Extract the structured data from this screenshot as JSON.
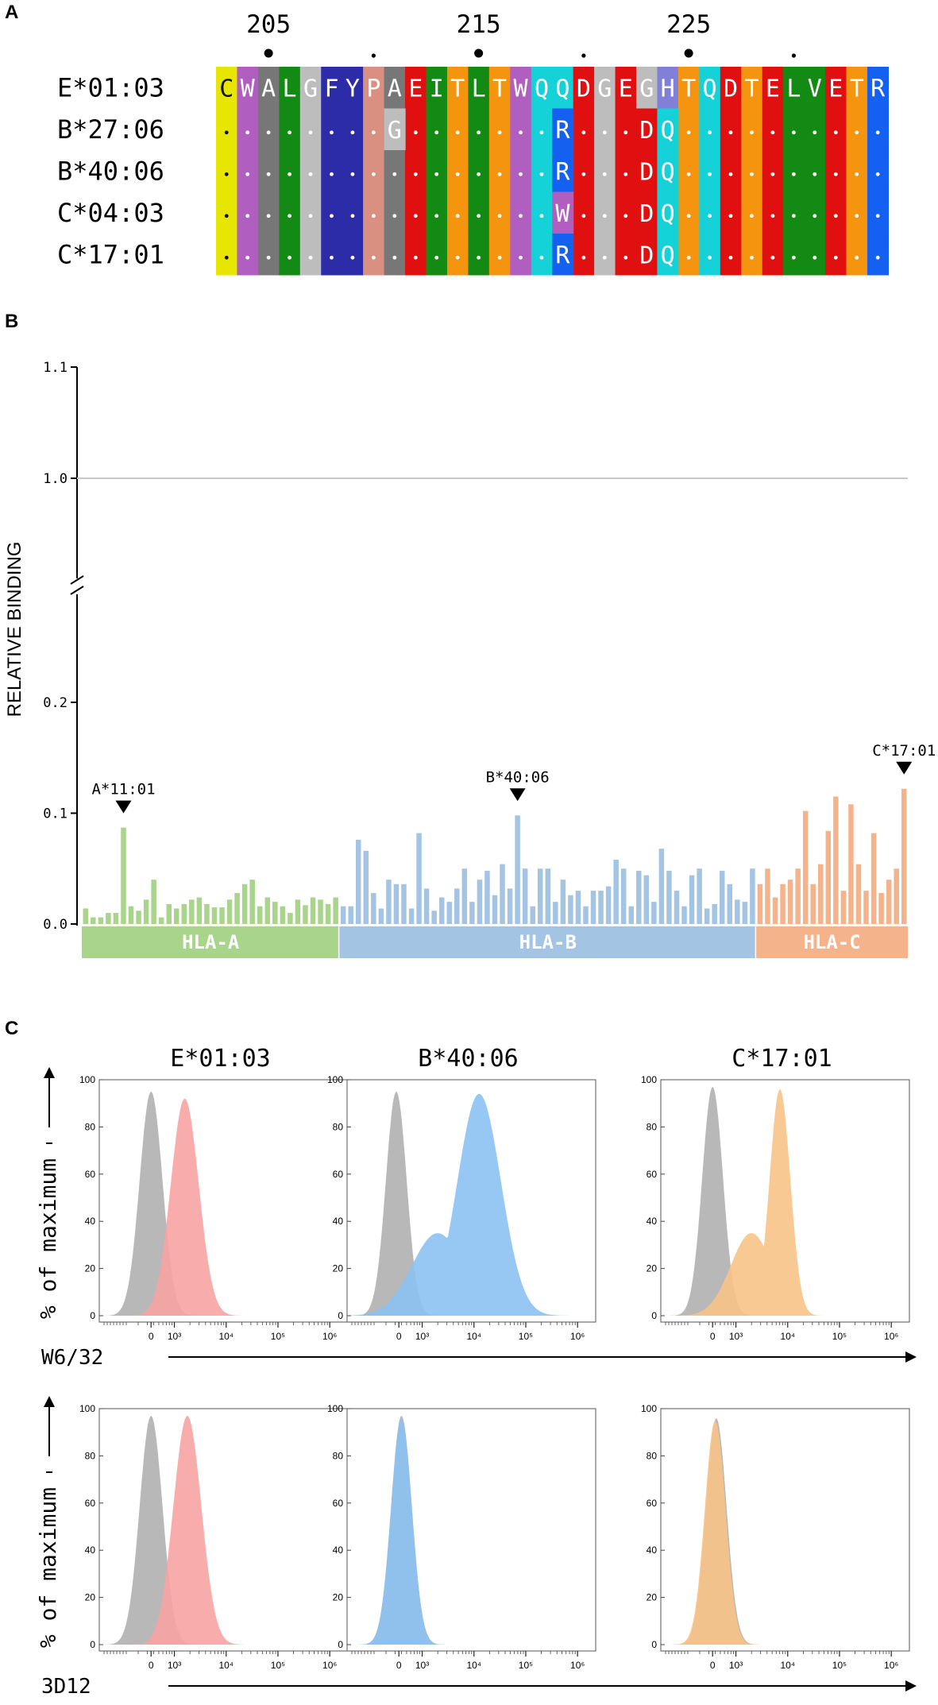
{
  "panels": {
    "a": "A",
    "b": "B",
    "c": "C"
  },
  "alignment": {
    "position_labels": [
      {
        "text": "205",
        "residue_index": 2
      },
      {
        "text": "215",
        "residue_index": 12
      },
      {
        "text": "225",
        "residue_index": 22
      }
    ],
    "major_marker_indices": [
      2,
      12,
      22
    ],
    "minor_marker_indices": [
      7,
      17,
      27
    ],
    "reference": {
      "name": "E*01:03",
      "sequence": "CWALGFYPAEITLTWQQDGEGHTQDTELVETR"
    },
    "rows": [
      {
        "name": "B*27:06",
        "diffs": {
          "8": "G",
          "16": "R",
          "20": "D",
          "21": "Q"
        }
      },
      {
        "name": "B*40:06",
        "diffs": {
          "16": "R",
          "20": "D",
          "21": "Q"
        }
      },
      {
        "name": "C*04:03",
        "diffs": {
          "16": "W",
          "20": "D",
          "21": "Q"
        }
      },
      {
        "name": "C*17:01",
        "diffs": {
          "16": "R",
          "20": "D",
          "21": "Q"
        }
      }
    ],
    "residue_colors": {
      "C": "#e6e600",
      "W": "#b05fc0",
      "A": "#777777",
      "L": "#138a13",
      "G": "#bdbdbd",
      "F": "#2c2ca8",
      "Y": "#2c2ca8",
      "P": "#d99080",
      "E": "#e01010",
      "I": "#138a13",
      "T": "#f5950f",
      "Q": "#14d2d8",
      "D": "#e01010",
      "H": "#8080d8",
      "V": "#138a13",
      "R": "#1460f0"
    }
  },
  "chart_data": [
    {
      "type": "bar",
      "id": "relative-binding",
      "ylabel": "RELATIVE BINDING",
      "yticks": [
        "0.0",
        "0.1",
        "0.2",
        "1.0",
        "1.1"
      ],
      "axis_break": [
        0.3,
        0.95
      ],
      "reference_line": 1.0,
      "groups": [
        {
          "name": "HLA-A",
          "color": "#a8d48c",
          "values": [
            0.014,
            0.006,
            0.006,
            0.01,
            0.01,
            0.087,
            0.016,
            0.012,
            0.022,
            0.04,
            0.006,
            0.018,
            0.014,
            0.018,
            0.022,
            0.024,
            0.018,
            0.015,
            0.015,
            0.022,
            0.028,
            0.036,
            0.04,
            0.016,
            0.024,
            0.02,
            0.016,
            0.01,
            0.022,
            0.017,
            0.024,
            0.022,
            0.018,
            0.024
          ]
        },
        {
          "name": "HLA-B",
          "color": "#a4c4e4",
          "values": [
            0.016,
            0.016,
            0.076,
            0.066,
            0.028,
            0.014,
            0.04,
            0.036,
            0.036,
            0.014,
            0.082,
            0.032,
            0.012,
            0.024,
            0.02,
            0.032,
            0.05,
            0.02,
            0.04,
            0.048,
            0.026,
            0.054,
            0.032,
            0.098,
            0.05,
            0.016,
            0.05,
            0.05,
            0.02,
            0.04,
            0.026,
            0.03,
            0.016,
            0.03,
            0.03,
            0.034,
            0.058,
            0.05,
            0.016,
            0.048,
            0.044,
            0.02,
            0.068,
            0.048,
            0.03,
            0.016,
            0.044,
            0.05,
            0.014,
            0.018,
            0.048,
            0.036,
            0.022,
            0.02,
            0.05
          ]
        },
        {
          "name": "HLA-C",
          "color": "#f5b38c",
          "values": [
            0.036,
            0.05,
            0.024,
            0.036,
            0.04,
            0.05,
            0.102,
            0.036,
            0.054,
            0.084,
            0.115,
            0.03,
            0.108,
            0.054,
            0.03,
            0.082,
            0.028,
            0.04,
            0.05,
            0.122
          ]
        }
      ],
      "annotations": [
        {
          "text": "A*11:01",
          "group": 0,
          "index": 5
        },
        {
          "text": "B*40:06",
          "group": 1,
          "index": 23
        },
        {
          "text": "C*17:01",
          "group": 2,
          "index": 19
        }
      ]
    },
    {
      "type": "histogram",
      "id": "flow-cytometry",
      "ylabel": "% of maximum",
      "yticks": [
        0,
        20,
        40,
        60,
        80,
        100
      ],
      "xticks": [
        "0",
        "10³",
        "10⁴",
        "10⁵",
        "10⁶"
      ],
      "column_titles": [
        "E*01:03",
        "B*40:06",
        "C*17:01"
      ],
      "control_color": "#b4b4b4",
      "rows": [
        {
          "xlabel": "W6/32",
          "panels": [
            {
              "title": "E*01:03",
              "color": "#f7a3a3",
              "control": {
                "center": 2.55,
                "height": 95,
                "width": 0.22
              },
              "stain": {
                "center": 3.2,
                "height": 92,
                "width": 0.27
              }
            },
            {
              "title": "B*40:06",
              "color": "#8cc2f2",
              "control": {
                "center": 2.5,
                "height": 95,
                "width": 0.2
              },
              "stain": {
                "center": 4.1,
                "height": 94,
                "width": 0.42,
                "shoulder": {
                  "center": 3.3,
                  "height": 35,
                  "width": 0.5
                }
              }
            },
            {
              "title": "C*17:01",
              "color": "#f8c388",
              "control": {
                "center": 2.55,
                "height": 97,
                "width": 0.2
              },
              "stain": {
                "center": 3.85,
                "height": 96,
                "width": 0.2,
                "shoulder": {
                  "center": 3.3,
                  "height": 35,
                  "width": 0.4
                }
              }
            }
          ]
        },
        {
          "xlabel": "3D12",
          "panels": [
            {
              "title": "E*01:03",
              "color": "#f7a3a3",
              "control": {
                "center": 2.55,
                "height": 97,
                "width": 0.22
              },
              "stain": {
                "center": 3.25,
                "height": 97,
                "width": 0.27
              }
            },
            {
              "title": "B*40:06",
              "color": "#8cc2f2",
              "control": {
                "center": 2.6,
                "height": 97,
                "width": 0.2
              },
              "stain": {
                "center": 2.6,
                "height": 96,
                "width": 0.2
              }
            },
            {
              "title": "C*17:01",
              "color": "#f8c388",
              "control": {
                "center": 2.62,
                "height": 96,
                "width": 0.2
              },
              "stain": {
                "center": 2.6,
                "height": 95,
                "width": 0.2
              }
            }
          ]
        }
      ]
    }
  ]
}
